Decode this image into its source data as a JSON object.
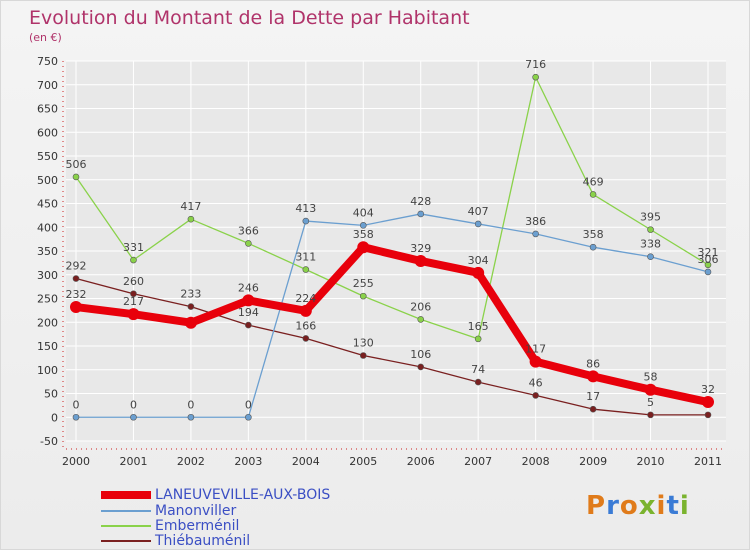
{
  "title": "Evolution du Montant de la Dette par Habitant",
  "subtitle": "(en €)",
  "logo_text": "Proxiti",
  "colors": {
    "title": "#b0336a",
    "legend_text": "#3b4fc4",
    "grid": "#ffffff",
    "axis_labels": "#333333"
  },
  "chart_data": {
    "type": "line",
    "x": [
      "2000",
      "2001",
      "2002",
      "2003",
      "2004",
      "2005",
      "2006",
      "2007",
      "2008",
      "2009",
      "2010",
      "2011"
    ],
    "ylim": [
      -50,
      750
    ],
    "yticks": [
      -50,
      0,
      50,
      100,
      150,
      200,
      250,
      300,
      350,
      400,
      450,
      500,
      550,
      600,
      650,
      700,
      750
    ],
    "grid": true,
    "legend_position": "bottom-left",
    "series": [
      {
        "name": "LANEUVEVILLE-AUX-BOIS",
        "color": "#e8000b",
        "values": [
          232,
          217,
          199,
          246,
          224,
          358,
          329,
          304,
          117,
          86,
          58,
          32
        ],
        "labels": [
          "232",
          "217",
          "",
          "246",
          "224",
          "358",
          "329",
          "304",
          "117",
          "86",
          "58",
          "32"
        ]
      },
      {
        "name": "Manonviller",
        "color": "#6b9fd0",
        "values": [
          0,
          0,
          0,
          0,
          413,
          404,
          428,
          407,
          386,
          358,
          338,
          306
        ],
        "labels": [
          "0",
          "0",
          "0",
          "0",
          "413",
          "404",
          "428",
          "407",
          "386",
          "358",
          "338",
          "306"
        ]
      },
      {
        "name": "Emberménil",
        "color": "#8ad24a",
        "values": [
          506,
          331,
          417,
          366,
          311,
          255,
          206,
          165,
          716,
          469,
          395,
          321
        ],
        "labels": [
          "506",
          "331",
          "417",
          "366",
          "311",
          "255",
          "206",
          "165",
          "716",
          "469",
          "395",
          "321"
        ]
      },
      {
        "name": "Thiébauménil",
        "color": "#7a2020",
        "values": [
          292,
          260,
          233,
          194,
          166,
          130,
          106,
          74,
          46,
          17,
          5,
          5
        ],
        "labels": [
          "292",
          "260",
          "233",
          "194",
          "166",
          "130",
          "106",
          "74",
          "46",
          "17",
          "5",
          ""
        ]
      }
    ]
  }
}
